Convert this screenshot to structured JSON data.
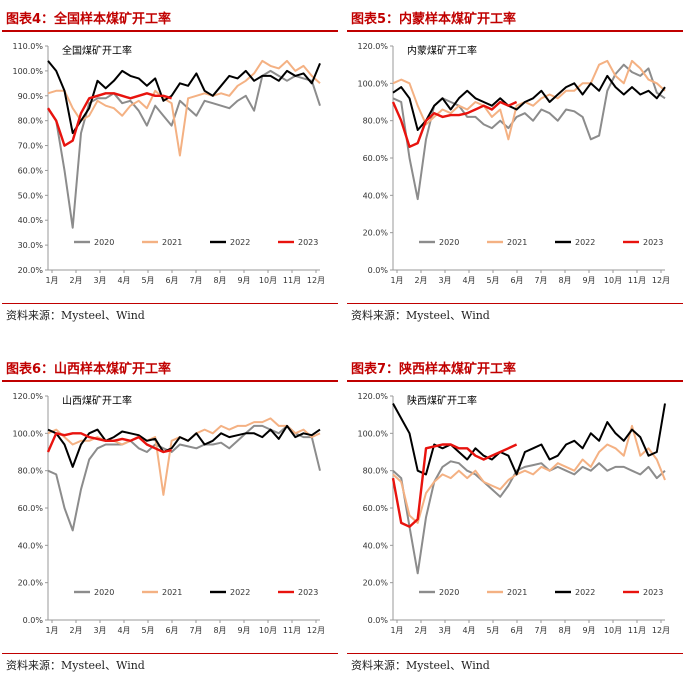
{
  "source_label": "资料来源：Mysteel、Wind",
  "colors": {
    "2020": "#8c8c8c",
    "2021": "#f4b183",
    "2022": "#000000",
    "2023": "#e8130e",
    "title": "#c00000"
  },
  "chart_data": [
    {
      "type": "line",
      "figure_title": "图表4：全国样本煤矿开工率",
      "title": "全国煤矿开工率",
      "x_ticks": [
        "1月",
        "2月",
        "3月",
        "4月",
        "5月",
        "6月",
        "7月",
        "8月",
        "9月",
        "10月",
        "11月",
        "12月"
      ],
      "y_ticks": [
        "20.0%",
        "30.0%",
        "40.0%",
        "50.0%",
        "60.0%",
        "70.0%",
        "80.0%",
        "90.0%",
        "100.0%",
        "110.0%"
      ],
      "ylim": [
        20,
        110
      ],
      "series": [
        {
          "name": "2020",
          "values": [
            85,
            80,
            60,
            37,
            75,
            87,
            89,
            89,
            91,
            87,
            88,
            84,
            78,
            86,
            82,
            78,
            88,
            85,
            82,
            88,
            87,
            86,
            85,
            88,
            90,
            84,
            98,
            100,
            98,
            96,
            98,
            97,
            96,
            86
          ]
        },
        {
          "name": "2021",
          "values": [
            91,
            92,
            92,
            85,
            80,
            82,
            88,
            86,
            85,
            82,
            86,
            88,
            85,
            92,
            89,
            87,
            66,
            89,
            90,
            91,
            90,
            91,
            90,
            94,
            96,
            99,
            104,
            102,
            101,
            104,
            100,
            102,
            98,
            95
          ]
        },
        {
          "name": "2022",
          "values": [
            104,
            100,
            92,
            75,
            80,
            85,
            96,
            93,
            96,
            100,
            98,
            97,
            94,
            97,
            88,
            90,
            95,
            94,
            99,
            92,
            90,
            94,
            98,
            97,
            100,
            96,
            98,
            98,
            96,
            100,
            98,
            99,
            95,
            103
          ]
        },
        {
          "name": "2023",
          "values": [
            85,
            80,
            70,
            72,
            83,
            89,
            90,
            91,
            91,
            90,
            89,
            90,
            91,
            90,
            90,
            89
          ]
        }
      ]
    },
    {
      "type": "line",
      "figure_title": "图表5：内蒙样本煤矿开工率",
      "title": "内蒙煤矿开工率",
      "x_ticks": [
        "1月",
        "2月",
        "3月",
        "4月",
        "5月",
        "6月",
        "7月",
        "8月",
        "9月",
        "10月",
        "11月",
        "12月"
      ],
      "y_ticks": [
        "0.0%",
        "20.0%",
        "40.0%",
        "60.0%",
        "80.0%",
        "100.0%",
        "120.0%"
      ],
      "ylim": [
        0,
        120
      ],
      "series": [
        {
          "name": "2020",
          "values": [
            92,
            90,
            60,
            38,
            70,
            88,
            92,
            90,
            88,
            82,
            82,
            78,
            76,
            80,
            76,
            82,
            84,
            80,
            86,
            84,
            80,
            86,
            85,
            82,
            70,
            72,
            96,
            105,
            110,
            106,
            104,
            108,
            95,
            92
          ]
        },
        {
          "name": "2021",
          "values": [
            100,
            102,
            100,
            88,
            78,
            82,
            86,
            84,
            88,
            86,
            90,
            88,
            82,
            86,
            70,
            88,
            90,
            88,
            92,
            94,
            92,
            96,
            96,
            100,
            100,
            110,
            112,
            104,
            100,
            112,
            108,
            102,
            100,
            96
          ]
        },
        {
          "name": "2022",
          "values": [
            95,
            98,
            92,
            75,
            80,
            88,
            92,
            86,
            92,
            96,
            92,
            90,
            88,
            92,
            88,
            86,
            90,
            92,
            96,
            90,
            94,
            98,
            100,
            94,
            100,
            96,
            104,
            98,
            94,
            98,
            94,
            96,
            92,
            98
          ]
        },
        {
          "name": "2023",
          "values": [
            90,
            80,
            66,
            68,
            80,
            84,
            82,
            83,
            83,
            84,
            86,
            88,
            86,
            90,
            88,
            90
          ]
        }
      ]
    },
    {
      "type": "line",
      "figure_title": "图表6：山西样本煤矿开工率",
      "title": "山西煤矿开工率",
      "x_ticks": [
        "1月",
        "2月",
        "3月",
        "4月",
        "5月",
        "6月",
        "7月",
        "8月",
        "9月",
        "10月",
        "11月",
        "12月"
      ],
      "y_ticks": [
        "0.0%",
        "20.0%",
        "40.0%",
        "60.0%",
        "80.0%",
        "100.0%",
        "120.0%"
      ],
      "ylim": [
        0,
        120
      ],
      "series": [
        {
          "name": "2020",
          "values": [
            80,
            78,
            60,
            48,
            70,
            86,
            92,
            94,
            94,
            94,
            96,
            92,
            90,
            94,
            92,
            90,
            94,
            93,
            92,
            94,
            94,
            95,
            92,
            96,
            100,
            104,
            104,
            102,
            100,
            104,
            100,
            98,
            98,
            80
          ]
        },
        {
          "name": "2021",
          "values": [
            100,
            102,
            98,
            94,
            96,
            96,
            98,
            96,
            96,
            94,
            96,
            98,
            96,
            98,
            67,
            96,
            98,
            96,
            100,
            102,
            100,
            104,
            102,
            104,
            104,
            106,
            106,
            108,
            104,
            104,
            100,
            102,
            98,
            100
          ]
        },
        {
          "name": "2022",
          "values": [
            102,
            100,
            94,
            82,
            94,
            100,
            102,
            96,
            98,
            101,
            100,
            99,
            96,
            97,
            90,
            92,
            98,
            96,
            100,
            94,
            96,
            100,
            98,
            99,
            100,
            100,
            98,
            102,
            97,
            104,
            98,
            100,
            99,
            102
          ]
        },
        {
          "name": "2023",
          "values": [
            90,
            100,
            99,
            100,
            100,
            98,
            97,
            96,
            96,
            97,
            96,
            98,
            94,
            92,
            90,
            91
          ]
        }
      ]
    },
    {
      "type": "line",
      "figure_title": "图表7：陕西样本煤矿开工率",
      "title": "陕西煤矿开工率",
      "x_ticks": [
        "1月",
        "2月",
        "3月",
        "4月",
        "5月",
        "6月",
        "7月",
        "8月",
        "9月",
        "10月",
        "11月",
        "12月"
      ],
      "y_ticks": [
        "0.0%",
        "20.0%",
        "40.0%",
        "60.0%",
        "80.0%",
        "100.0%",
        "120.0%"
      ],
      "ylim": [
        0,
        120
      ],
      "series": [
        {
          "name": "2020",
          "values": [
            80,
            76,
            50,
            25,
            55,
            74,
            82,
            85,
            84,
            80,
            78,
            74,
            70,
            66,
            72,
            80,
            82,
            83,
            84,
            80,
            82,
            80,
            78,
            82,
            80,
            84,
            80,
            82,
            82,
            80,
            78,
            82,
            76,
            80
          ]
        },
        {
          "name": "2021",
          "values": [
            78,
            74,
            56,
            52,
            68,
            74,
            78,
            76,
            80,
            76,
            80,
            74,
            72,
            70,
            75,
            78,
            80,
            78,
            82,
            80,
            84,
            82,
            80,
            86,
            82,
            90,
            94,
            92,
            88,
            104,
            88,
            92,
            86,
            75
          ]
        },
        {
          "name": "2022",
          "values": [
            116,
            108,
            100,
            80,
            78,
            94,
            92,
            94,
            90,
            86,
            92,
            88,
            86,
            90,
            88,
            78,
            90,
            92,
            94,
            86,
            88,
            94,
            96,
            92,
            100,
            96,
            106,
            100,
            96,
            102,
            98,
            88,
            90,
            116
          ]
        },
        {
          "name": "2023",
          "values": [
            76,
            52,
            50,
            54,
            92,
            93,
            94,
            94,
            92,
            92,
            88,
            86,
            88,
            90,
            92,
            94
          ]
        }
      ]
    }
  ]
}
